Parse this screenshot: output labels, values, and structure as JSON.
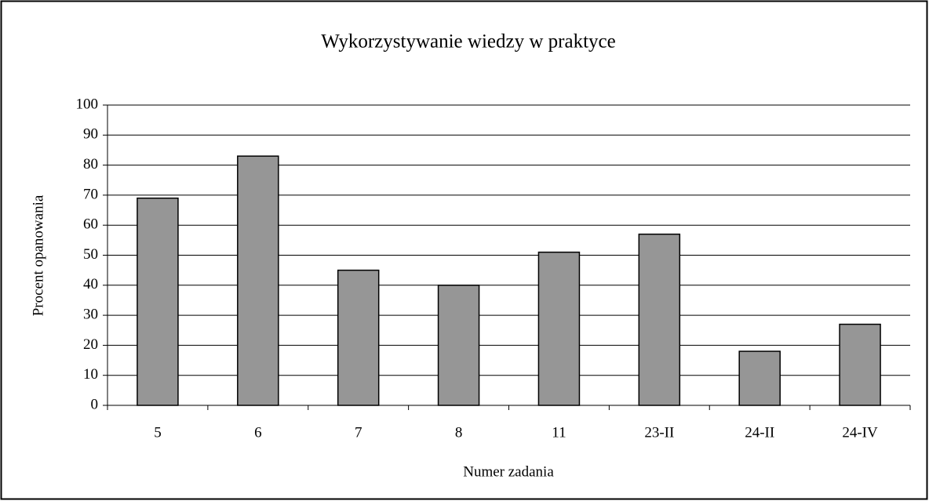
{
  "chart_data": {
    "type": "bar",
    "title": "Wykorzystywanie wiedzy w praktyce",
    "x_label": "Numer zadania",
    "y_label": "Procent opanowania",
    "categories": [
      "5",
      "6",
      "7",
      "8",
      "11",
      "23-II",
      "24-II",
      "24-IV"
    ],
    "values": [
      69,
      83,
      45,
      40,
      51,
      57,
      18,
      27
    ],
    "color": "#969696",
    "ylim": [
      0,
      100
    ],
    "yticks": [
      0,
      10,
      20,
      30,
      40,
      50,
      60,
      70,
      80,
      90,
      100
    ],
    "grid": true
  }
}
